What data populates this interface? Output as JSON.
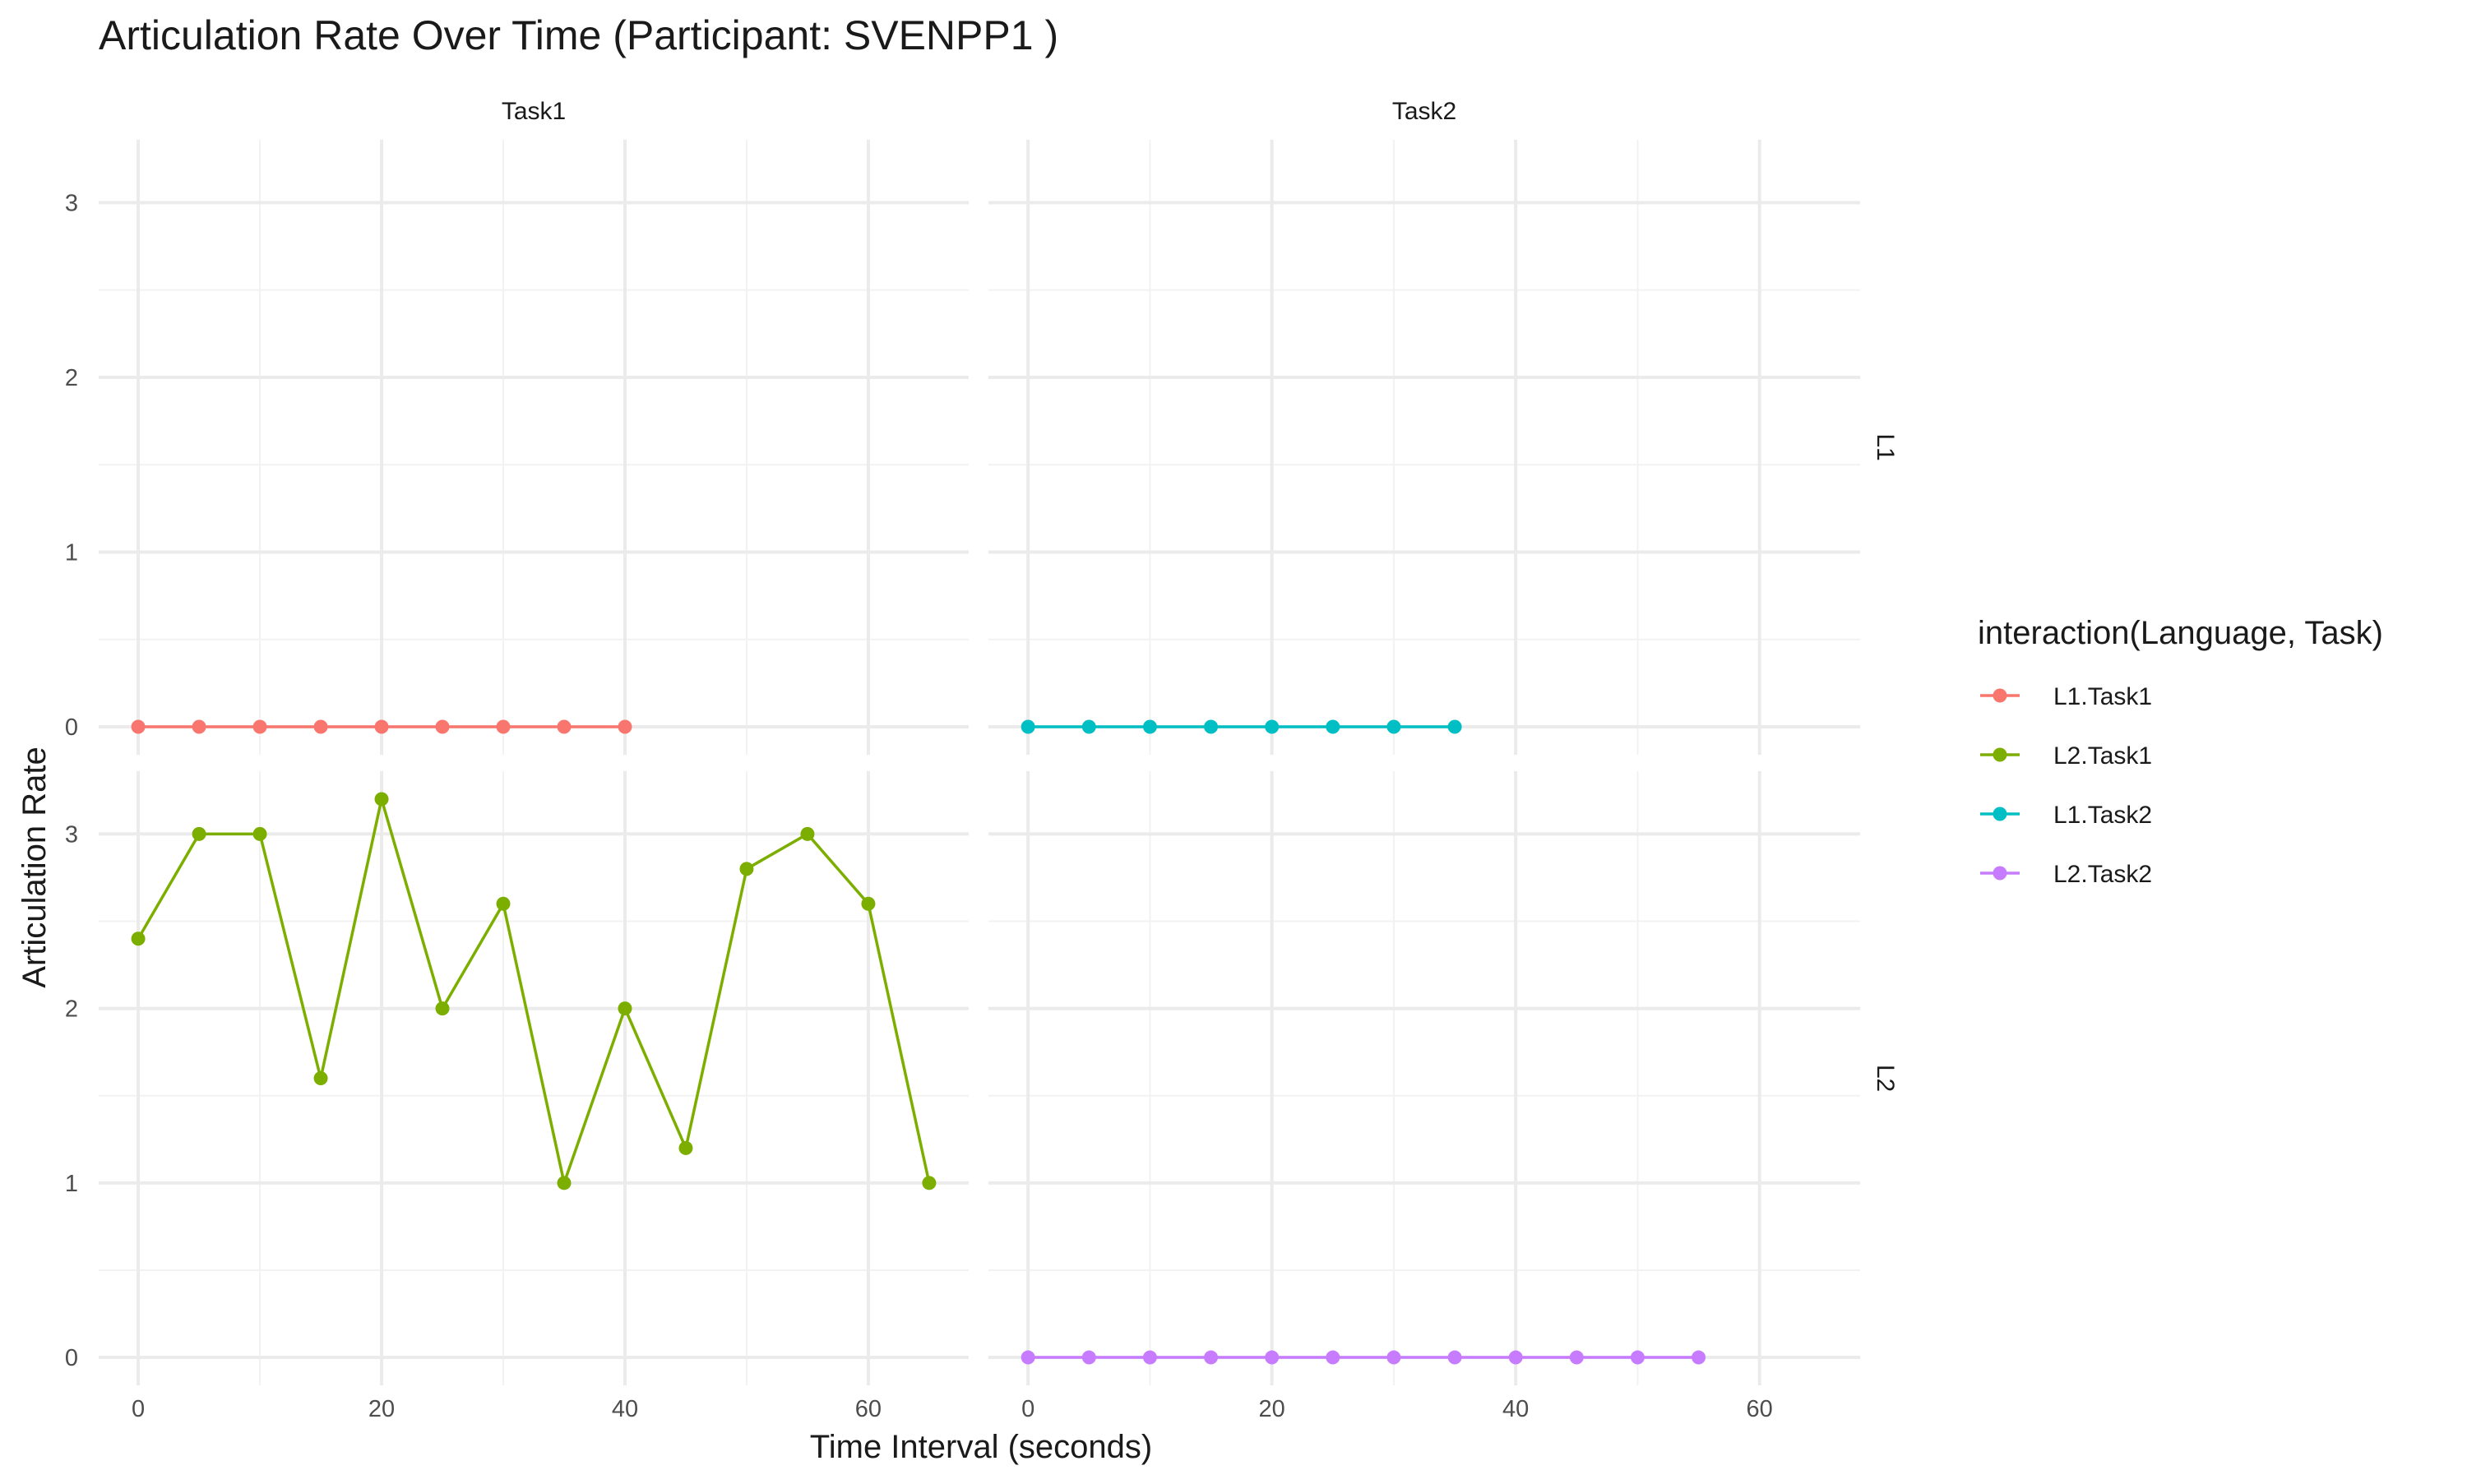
{
  "chart_data": {
    "type": "line",
    "title": "Articulation Rate Over Time (Participant: SVENPP1 )",
    "xlabel": "Time Interval (seconds)",
    "ylabel": "Articulation Rate",
    "xlim": [
      -3.25,
      68.25
    ],
    "ylim": [
      -0.16,
      3.36
    ],
    "x_ticks": [
      0,
      20,
      40,
      60
    ],
    "y_ticks": [
      0,
      1,
      2,
      3
    ],
    "grid": true,
    "legend_position": "right",
    "facet_columns": [
      "Task1",
      "Task2"
    ],
    "facet_rows": [
      "L1",
      "L2"
    ],
    "legend_title": "interaction(Language, Task)",
    "series": [
      {
        "name": "L1.Task1",
        "color": "#F8766D",
        "facet_column": "Task1",
        "facet_row": "L1",
        "x": [
          0,
          5,
          10,
          15,
          20,
          25,
          30,
          35,
          40
        ],
        "y": [
          0,
          0,
          0,
          0,
          0,
          0,
          0,
          0,
          0
        ]
      },
      {
        "name": "L2.Task1",
        "color": "#7CAE00",
        "facet_column": "Task1",
        "facet_row": "L2",
        "x": [
          0,
          5,
          10,
          15,
          20,
          25,
          30,
          35,
          40,
          45,
          50,
          55,
          60,
          65
        ],
        "y": [
          2.4,
          3.0,
          3.0,
          1.6,
          3.2,
          2.0,
          2.6,
          1.0,
          2.0,
          1.2,
          2.8,
          3.0,
          2.6,
          1.0
        ]
      },
      {
        "name": "L1.Task2",
        "color": "#00BFC4",
        "facet_column": "Task2",
        "facet_row": "L1",
        "x": [
          0,
          5,
          10,
          15,
          20,
          25,
          30,
          35
        ],
        "y": [
          0,
          0,
          0,
          0,
          0,
          0,
          0,
          0
        ]
      },
      {
        "name": "L2.Task2",
        "color": "#C77CFF",
        "facet_column": "Task2",
        "facet_row": "L2",
        "x": [
          0,
          5,
          10,
          15,
          20,
          25,
          30,
          35,
          40,
          45,
          50,
          55
        ],
        "y": [
          0,
          0,
          0,
          0,
          0,
          0,
          0,
          0,
          0,
          0,
          0,
          0
        ]
      }
    ]
  }
}
